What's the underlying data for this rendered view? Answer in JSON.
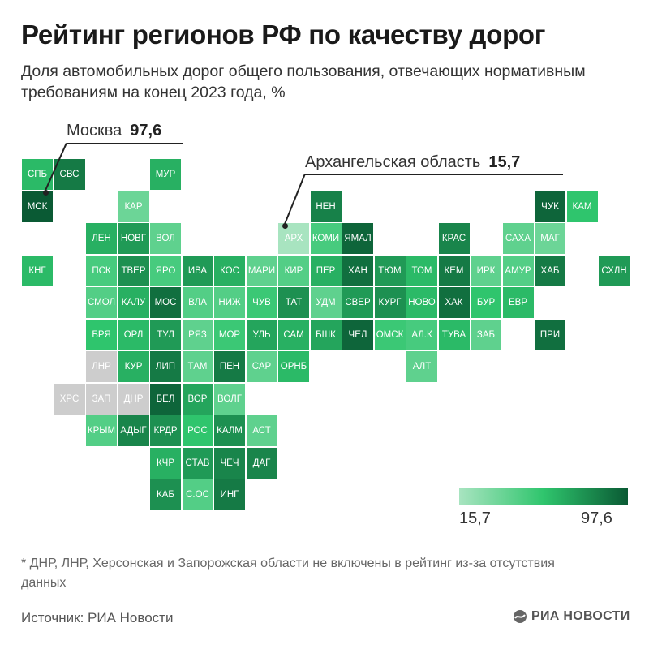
{
  "header": {
    "title": "Рейтинг регионов РФ по качеству дорог",
    "subtitle": "Доля автомобильных дорог общего пользования, отвечающих нормативным требованиям на конец 2023 года, %"
  },
  "callouts": {
    "moscow": {
      "label": "Москва",
      "value": "97,6"
    },
    "arkhangelsk": {
      "label": "Архангельская область",
      "value": "15,7"
    }
  },
  "legend": {
    "min_label": "15,7",
    "max_label": "97,6"
  },
  "footnote": "* ДНР, ЛНР, Херсонская и Запорожская области не включены в рейтинг из-за отсутствия данных",
  "source": "Источник: РИА Новости",
  "brand": "РИА НОВОСТИ",
  "colors": {
    "no_data": "#cdcdcd",
    "light": "#a8e4c0",
    "mid": "#2fc56d",
    "dark": "#0a5a34"
  },
  "regions": [
    {
      "label": "СПБ",
      "col": 0,
      "row": 0,
      "level": 0.55
    },
    {
      "label": "СВС",
      "col": 1,
      "row": 0,
      "level": 0.85
    },
    {
      "label": "МСК",
      "col": 0,
      "row": 1,
      "level": 1.0
    },
    {
      "label": "КНГ",
      "col": 0,
      "row": 3,
      "level": 0.55
    },
    {
      "label": "МУР",
      "col": 4,
      "row": 0,
      "level": 0.6
    },
    {
      "label": "КАР",
      "col": 3,
      "row": 1,
      "level": 0.25
    },
    {
      "label": "НЕН",
      "col": 9,
      "row": 1,
      "level": 0.82
    },
    {
      "label": "ЧУК",
      "col": 16,
      "row": 1,
      "level": 0.95
    },
    {
      "label": "КАМ",
      "col": 17,
      "row": 1,
      "level": 0.5
    },
    {
      "label": "ЛЕН",
      "col": 2,
      "row": 2,
      "level": 0.6
    },
    {
      "label": "НОВГ",
      "col": 3,
      "row": 2,
      "level": 0.7
    },
    {
      "label": "ВОЛ",
      "col": 4,
      "row": 2,
      "level": 0.3
    },
    {
      "label": "АРХ",
      "col": 8,
      "row": 2,
      "level": 0.0
    },
    {
      "label": "КОМИ",
      "col": 9,
      "row": 2,
      "level": 0.4
    },
    {
      "label": "ЯМАЛ",
      "col": 10,
      "row": 2,
      "level": 0.95
    },
    {
      "label": "КРАС",
      "col": 13,
      "row": 2,
      "level": 0.8
    },
    {
      "label": "САХА",
      "col": 15,
      "row": 2,
      "level": 0.3
    },
    {
      "label": "МАГ",
      "col": 16,
      "row": 2,
      "level": 0.25
    },
    {
      "label": "ПСК",
      "col": 2,
      "row": 3,
      "level": 0.4
    },
    {
      "label": "ТВЕР",
      "col": 3,
      "row": 3,
      "level": 0.75
    },
    {
      "label": "ЯРО",
      "col": 4,
      "row": 3,
      "level": 0.4
    },
    {
      "label": "ИВА",
      "col": 5,
      "row": 3,
      "level": 0.7
    },
    {
      "label": "КОС",
      "col": 6,
      "row": 3,
      "level": 0.6
    },
    {
      "label": "МАРИ",
      "col": 7,
      "row": 3,
      "level": 0.3
    },
    {
      "label": "КИР",
      "col": 8,
      "row": 3,
      "level": 0.35
    },
    {
      "label": "ПЕР",
      "col": 9,
      "row": 3,
      "level": 0.6
    },
    {
      "label": "ХАН",
      "col": 10,
      "row": 3,
      "level": 0.9
    },
    {
      "label": "ТЮМ",
      "col": 11,
      "row": 3,
      "level": 0.7
    },
    {
      "label": "ТОМ",
      "col": 12,
      "row": 3,
      "level": 0.55
    },
    {
      "label": "КЕМ",
      "col": 13,
      "row": 3,
      "level": 0.85
    },
    {
      "label": "ИРК",
      "col": 14,
      "row": 3,
      "level": 0.3
    },
    {
      "label": "АМУР",
      "col": 15,
      "row": 3,
      "level": 0.35
    },
    {
      "label": "ХАБ",
      "col": 16,
      "row": 3,
      "level": 0.85
    },
    {
      "label": "СХЛН",
      "col": 18,
      "row": 3,
      "level": 0.7
    },
    {
      "label": "СМОЛ",
      "col": 2,
      "row": 4,
      "level": 0.35
    },
    {
      "label": "КАЛУ",
      "col": 3,
      "row": 4,
      "level": 0.6
    },
    {
      "label": "МОС",
      "col": 4,
      "row": 4,
      "level": 0.9
    },
    {
      "label": "ВЛА",
      "col": 5,
      "row": 4,
      "level": 0.35
    },
    {
      "label": "НИЖ",
      "col": 6,
      "row": 4,
      "level": 0.35
    },
    {
      "label": "ЧУВ",
      "col": 7,
      "row": 4,
      "level": 0.45
    },
    {
      "label": "ТАТ",
      "col": 8,
      "row": 4,
      "level": 0.75
    },
    {
      "label": "УДМ",
      "col": 9,
      "row": 4,
      "level": 0.3
    },
    {
      "label": "СВЕР",
      "col": 10,
      "row": 4,
      "level": 0.7
    },
    {
      "label": "КУРГ",
      "col": 11,
      "row": 4,
      "level": 0.75
    },
    {
      "label": "НОВО",
      "col": 12,
      "row": 4,
      "level": 0.55
    },
    {
      "label": "ХАК",
      "col": 13,
      "row": 4,
      "level": 0.9
    },
    {
      "label": "БУР",
      "col": 14,
      "row": 4,
      "level": 0.5
    },
    {
      "label": "ЕВР",
      "col": 15,
      "row": 4,
      "level": 0.55
    },
    {
      "label": "БРЯ",
      "col": 2,
      "row": 5,
      "level": 0.5
    },
    {
      "label": "ОРЛ",
      "col": 3,
      "row": 5,
      "level": 0.55
    },
    {
      "label": "ТУЛ",
      "col": 4,
      "row": 5,
      "level": 0.7
    },
    {
      "label": "РЯЗ",
      "col": 5,
      "row": 5,
      "level": 0.3
    },
    {
      "label": "МОР",
      "col": 6,
      "row": 5,
      "level": 0.45
    },
    {
      "label": "УЛЬ",
      "col": 7,
      "row": 5,
      "level": 0.65
    },
    {
      "label": "САМ",
      "col": 8,
      "row": 5,
      "level": 0.6
    },
    {
      "label": "БШК",
      "col": 9,
      "row": 5,
      "level": 0.65
    },
    {
      "label": "ЧЕЛ",
      "col": 10,
      "row": 5,
      "level": 0.95
    },
    {
      "label": "ОМСК",
      "col": 11,
      "row": 5,
      "level": 0.45
    },
    {
      "label": "АЛ.К",
      "col": 12,
      "row": 5,
      "level": 0.4
    },
    {
      "label": "ТУВА",
      "col": 13,
      "row": 5,
      "level": 0.55
    },
    {
      "label": "ЗАБ",
      "col": 14,
      "row": 5,
      "level": 0.3
    },
    {
      "label": "ПРИ",
      "col": 16,
      "row": 5,
      "level": 0.9
    },
    {
      "label": "ЛНР",
      "col": 2,
      "row": 6,
      "level": null
    },
    {
      "label": "КУР",
      "col": 3,
      "row": 6,
      "level": 0.6
    },
    {
      "label": "ЛИП",
      "col": 4,
      "row": 6,
      "level": 0.85
    },
    {
      "label": "ТАМ",
      "col": 5,
      "row": 6,
      "level": 0.3
    },
    {
      "label": "ПЕН",
      "col": 6,
      "row": 6,
      "level": 0.85
    },
    {
      "label": "САР",
      "col": 7,
      "row": 6,
      "level": 0.3
    },
    {
      "label": "ОРНБ",
      "col": 8,
      "row": 6,
      "level": 0.55
    },
    {
      "label": "АЛТ",
      "col": 12,
      "row": 6,
      "level": 0.3
    },
    {
      "label": "ХРС",
      "col": 1,
      "row": 7,
      "level": null
    },
    {
      "label": "ЗАП",
      "col": 2,
      "row": 7,
      "level": null
    },
    {
      "label": "ДНР",
      "col": 3,
      "row": 7,
      "level": null
    },
    {
      "label": "БЕЛ",
      "col": 4,
      "row": 7,
      "level": 0.95
    },
    {
      "label": "ВОР",
      "col": 5,
      "row": 7,
      "level": 0.65
    },
    {
      "label": "ВОЛГ",
      "col": 6,
      "row": 7,
      "level": 0.3
    },
    {
      "label": "КРЫМ",
      "col": 2,
      "row": 8,
      "level": 0.35
    },
    {
      "label": "АДЫГ",
      "col": 3,
      "row": 8,
      "level": 0.8
    },
    {
      "label": "КРДР",
      "col": 4,
      "row": 8,
      "level": 0.75
    },
    {
      "label": "РОС",
      "col": 5,
      "row": 8,
      "level": 0.5
    },
    {
      "label": "КАЛМ",
      "col": 6,
      "row": 8,
      "level": 0.75
    },
    {
      "label": "АСТ",
      "col": 7,
      "row": 8,
      "level": 0.3
    },
    {
      "label": "КЧР",
      "col": 4,
      "row": 9,
      "level": 0.6
    },
    {
      "label": "СТАВ",
      "col": 5,
      "row": 9,
      "level": 0.7
    },
    {
      "label": "ЧЕЧ",
      "col": 6,
      "row": 9,
      "level": 0.8
    },
    {
      "label": "ДАГ",
      "col": 7,
      "row": 9,
      "level": 0.8
    },
    {
      "label": "КАБ",
      "col": 4,
      "row": 10,
      "level": 0.75
    },
    {
      "label": "С.ОС",
      "col": 5,
      "row": 10,
      "level": 0.35
    },
    {
      "label": "ИНГ",
      "col": 6,
      "row": 10,
      "level": 0.85
    }
  ]
}
